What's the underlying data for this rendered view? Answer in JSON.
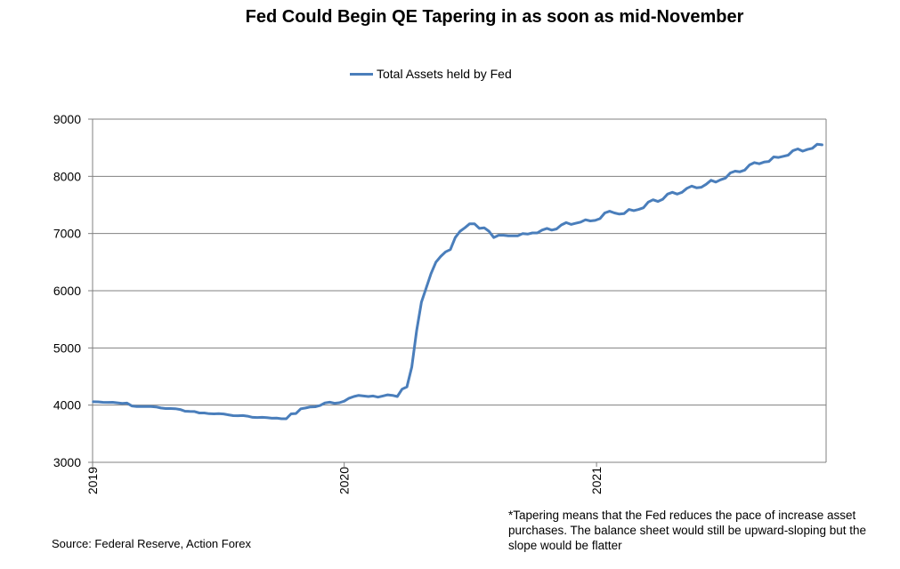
{
  "chart_data": {
    "type": "line",
    "title": "Fed Could Begin QE Tapering in as soon as mid-November",
    "legend_position": "top-center",
    "grid": true,
    "series": [
      {
        "name": "Total Assets held by Fed",
        "color": "#4a7ebb",
        "points": [
          [
            "2019-01-02",
            4058
          ],
          [
            "2019-01-09",
            4057
          ],
          [
            "2019-01-16",
            4049
          ],
          [
            "2019-01-23",
            4047
          ],
          [
            "2019-01-30",
            4049
          ],
          [
            "2019-02-06",
            4040
          ],
          [
            "2019-02-13",
            4031
          ],
          [
            "2019-02-20",
            4036
          ],
          [
            "2019-02-27",
            3986
          ],
          [
            "2019-03-06",
            3976
          ],
          [
            "2019-03-13",
            3976
          ],
          [
            "2019-03-20",
            3974
          ],
          [
            "2019-03-27",
            3974
          ],
          [
            "2019-04-03",
            3968
          ],
          [
            "2019-04-10",
            3950
          ],
          [
            "2019-04-17",
            3940
          ],
          [
            "2019-04-24",
            3941
          ],
          [
            "2019-05-01",
            3938
          ],
          [
            "2019-05-08",
            3924
          ],
          [
            "2019-05-15",
            3894
          ],
          [
            "2019-05-22",
            3889
          ],
          [
            "2019-05-29",
            3888
          ],
          [
            "2019-06-05",
            3863
          ],
          [
            "2019-06-12",
            3863
          ],
          [
            "2019-06-19",
            3850
          ],
          [
            "2019-06-26",
            3847
          ],
          [
            "2019-07-03",
            3850
          ],
          [
            "2019-07-10",
            3846
          ],
          [
            "2019-07-17",
            3830
          ],
          [
            "2019-07-24",
            3816
          ],
          [
            "2019-07-31",
            3814
          ],
          [
            "2019-08-07",
            3817
          ],
          [
            "2019-08-14",
            3806
          ],
          [
            "2019-08-21",
            3786
          ],
          [
            "2019-08-28",
            3784
          ],
          [
            "2019-09-04",
            3786
          ],
          [
            "2019-09-11",
            3780
          ],
          [
            "2019-09-18",
            3771
          ],
          [
            "2019-09-25",
            3772
          ],
          [
            "2019-10-02",
            3762
          ],
          [
            "2019-10-09",
            3762
          ],
          [
            "2019-10-16",
            3847
          ],
          [
            "2019-10-23",
            3854
          ],
          [
            "2019-10-30",
            3935
          ],
          [
            "2019-11-06",
            3950
          ],
          [
            "2019-11-13",
            3969
          ],
          [
            "2019-11-20",
            3972
          ],
          [
            "2019-11-27",
            3993
          ],
          [
            "2019-12-04",
            4038
          ],
          [
            "2019-12-11",
            4050
          ],
          [
            "2019-12-18",
            4032
          ],
          [
            "2019-12-25",
            4042
          ],
          [
            "2020-01-01",
            4070
          ],
          [
            "2020-01-08",
            4120
          ],
          [
            "2020-01-15",
            4150
          ],
          [
            "2020-01-22",
            4170
          ],
          [
            "2020-01-29",
            4160
          ],
          [
            "2020-02-05",
            4150
          ],
          [
            "2020-02-12",
            4160
          ],
          [
            "2020-02-19",
            4140
          ],
          [
            "2020-02-26",
            4160
          ],
          [
            "2020-03-04",
            4180
          ],
          [
            "2020-03-11",
            4170
          ],
          [
            "2020-03-18",
            4150
          ],
          [
            "2020-03-25",
            4280
          ],
          [
            "2020-04-01",
            4320
          ],
          [
            "2020-04-08",
            4670
          ],
          [
            "2020-04-15",
            5300
          ],
          [
            "2020-04-22",
            5800
          ],
          [
            "2020-04-29",
            6050
          ],
          [
            "2020-05-06",
            6300
          ],
          [
            "2020-05-13",
            6500
          ],
          [
            "2020-05-20",
            6600
          ],
          [
            "2020-05-27",
            6680
          ],
          [
            "2020-06-03",
            6720
          ],
          [
            "2020-06-10",
            6930
          ],
          [
            "2020-06-17",
            7040
          ],
          [
            "2020-06-24",
            7100
          ],
          [
            "2020-07-01",
            7170
          ],
          [
            "2020-07-08",
            7170
          ],
          [
            "2020-07-15",
            7090
          ],
          [
            "2020-07-22",
            7100
          ],
          [
            "2020-07-29",
            7040
          ],
          [
            "2020-08-05",
            6930
          ],
          [
            "2020-08-12",
            6970
          ],
          [
            "2020-08-19",
            6970
          ],
          [
            "2020-08-26",
            6960
          ],
          [
            "2020-09-02",
            6960
          ],
          [
            "2020-09-09",
            6960
          ],
          [
            "2020-09-16",
            7000
          ],
          [
            "2020-09-23",
            6990
          ],
          [
            "2020-09-30",
            7010
          ],
          [
            "2020-10-07",
            7010
          ],
          [
            "2020-10-14",
            7060
          ],
          [
            "2020-10-21",
            7090
          ],
          [
            "2020-10-28",
            7060
          ],
          [
            "2020-11-04",
            7080
          ],
          [
            "2020-11-11",
            7150
          ],
          [
            "2020-11-18",
            7190
          ],
          [
            "2020-11-25",
            7160
          ],
          [
            "2020-12-02",
            7180
          ],
          [
            "2020-12-09",
            7200
          ],
          [
            "2020-12-16",
            7240
          ],
          [
            "2020-12-23",
            7220
          ],
          [
            "2020-12-30",
            7230
          ],
          [
            "2021-01-06",
            7260
          ],
          [
            "2021-01-13",
            7360
          ],
          [
            "2021-01-20",
            7390
          ],
          [
            "2021-01-27",
            7360
          ],
          [
            "2021-02-03",
            7340
          ],
          [
            "2021-02-10",
            7350
          ],
          [
            "2021-02-17",
            7420
          ],
          [
            "2021-02-24",
            7400
          ],
          [
            "2021-03-03",
            7420
          ],
          [
            "2021-03-10",
            7450
          ],
          [
            "2021-03-17",
            7550
          ],
          [
            "2021-03-24",
            7590
          ],
          [
            "2021-03-31",
            7560
          ],
          [
            "2021-04-07",
            7600
          ],
          [
            "2021-04-14",
            7690
          ],
          [
            "2021-04-21",
            7720
          ],
          [
            "2021-04-28",
            7690
          ],
          [
            "2021-05-05",
            7720
          ],
          [
            "2021-05-12",
            7790
          ],
          [
            "2021-05-19",
            7830
          ],
          [
            "2021-05-26",
            7800
          ],
          [
            "2021-06-02",
            7810
          ],
          [
            "2021-06-09",
            7860
          ],
          [
            "2021-06-16",
            7930
          ],
          [
            "2021-06-23",
            7900
          ],
          [
            "2021-06-30",
            7940
          ],
          [
            "2021-07-07",
            7970
          ],
          [
            "2021-07-14",
            8060
          ],
          [
            "2021-07-21",
            8090
          ],
          [
            "2021-07-28",
            8080
          ],
          [
            "2021-08-04",
            8110
          ],
          [
            "2021-08-11",
            8200
          ],
          [
            "2021-08-18",
            8240
          ],
          [
            "2021-08-25",
            8220
          ],
          [
            "2021-09-01",
            8250
          ],
          [
            "2021-09-08",
            8260
          ],
          [
            "2021-09-15",
            8340
          ],
          [
            "2021-09-22",
            8330
          ],
          [
            "2021-09-29",
            8350
          ],
          [
            "2021-10-06",
            8370
          ],
          [
            "2021-10-13",
            8450
          ],
          [
            "2021-10-20",
            8480
          ],
          [
            "2021-10-27",
            8440
          ],
          [
            "2021-11-03",
            8470
          ],
          [
            "2021-11-10",
            8490
          ],
          [
            "2021-11-17",
            8560
          ],
          [
            "2021-11-24",
            8550
          ]
        ]
      }
    ],
    "x_axis": {
      "type": "date",
      "range": [
        "2019-01-01",
        "2021-11-30"
      ],
      "tick_labels": [
        {
          "date": "2019-01-01",
          "label": "2019"
        },
        {
          "date": "2020-01-01",
          "label": "2020"
        },
        {
          "date": "2021-01-01",
          "label": "2021"
        }
      ]
    },
    "y_axis": {
      "ylim": [
        3000,
        9000
      ],
      "ticks": [
        3000,
        4000,
        5000,
        6000,
        7000,
        8000,
        9000
      ],
      "tick_labels": [
        "3000",
        "4000",
        "5000",
        "6000",
        "7000",
        "8000",
        "9000"
      ]
    },
    "source": "Source: Federal Reserve, Action Forex",
    "annotation": "*Tapering means  that the Fed reduces the pace of increase asset purchases. The balance sheet would still be upward-sloping but the slope would be flatter"
  }
}
